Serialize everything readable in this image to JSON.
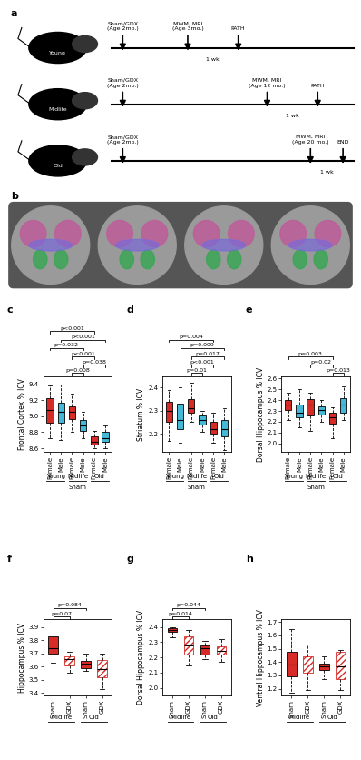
{
  "figure_a": {
    "label": "a",
    "rows": [
      {
        "name": "Young",
        "start": "Sham/GDX\n(Age 2mo.)",
        "test": "MWM, MRI\n(Age 3mo.)",
        "gap": "1 wk",
        "end": "PATH"
      },
      {
        "name": "Midlife",
        "start": "Sham/GDX\n(Age 2mo.)",
        "test": "MWM, MRI\n(Age 12 mo.)",
        "gap": "1 wk",
        "end": "PATH"
      },
      {
        "name": "Old",
        "start": "Sham/GDX\n(Age 2mo.)",
        "test": "MWM, MRI\n(Age 20 mo.)",
        "gap": "1 wk",
        "end": "END"
      }
    ]
  },
  "figure_b": {
    "label": "b"
  },
  "chart_data": [
    {
      "type": "box",
      "label": "c",
      "ylabel": "Frontal Cortex % ICV",
      "categories": [
        "Female",
        "Male",
        "Female",
        "Male",
        "Female",
        "Male"
      ],
      "groups": [
        "Young",
        "Young",
        "Midlife",
        "Midlife",
        "Old",
        "Old"
      ],
      "xlabel": "Sham",
      "colors": [
        "#d62b27",
        "#45b8d8",
        "#d62b27",
        "#45b8d8",
        "#d62b27",
        "#45b8d8"
      ],
      "box_stats": [
        {
          "min": 8.72,
          "q1": 8.92,
          "median": 9.08,
          "q3": 9.22,
          "max": 9.38
        },
        {
          "min": 8.7,
          "q1": 8.92,
          "median": 9.05,
          "q3": 9.17,
          "max": 9.4
        },
        {
          "min": 8.8,
          "q1": 8.96,
          "median": 9.05,
          "q3": 9.12,
          "max": 9.28
        },
        {
          "min": 8.73,
          "q1": 8.82,
          "median": 8.88,
          "q3": 8.95,
          "max": 9.05
        },
        {
          "min": 8.6,
          "q1": 8.64,
          "median": 8.68,
          "q3": 8.75,
          "max": 8.82
        },
        {
          "min": 8.6,
          "q1": 8.68,
          "median": 8.72,
          "q3": 8.8,
          "max": 8.88
        }
      ],
      "ylim": [
        8.55,
        9.5
      ],
      "yticks": [
        8.6,
        8.8,
        9.0,
        9.2,
        9.4
      ],
      "comparisons": [
        {
          "from": 2,
          "to": 3,
          "label": "p=0.008"
        },
        {
          "from": 3,
          "to": 5,
          "label": "p=0.038"
        },
        {
          "from": 2,
          "to": 4,
          "label": "p<0.001"
        },
        {
          "from": 0,
          "to": 3,
          "label": "p=0.032"
        },
        {
          "from": 1,
          "to": 5,
          "label": "p<0.001"
        },
        {
          "from": 0,
          "to": 4,
          "label": "p<0.001"
        }
      ]
    },
    {
      "type": "box",
      "label": "d",
      "ylabel": "Striatum % ICV",
      "categories": [
        "Female",
        "Male",
        "Female",
        "Male",
        "Female",
        "Male"
      ],
      "groups": [
        "Young",
        "Young",
        "Midlife",
        "Midlife",
        "Old",
        "Old"
      ],
      "xlabel": "Sham",
      "colors": [
        "#d62b27",
        "#45b8d8",
        "#d62b27",
        "#45b8d8",
        "#d62b27",
        "#45b8d8"
      ],
      "box_stats": [
        {
          "min": 2.17,
          "q1": 2.25,
          "median": 2.3,
          "q3": 2.34,
          "max": 2.39
        },
        {
          "min": 2.16,
          "q1": 2.22,
          "median": 2.26,
          "q3": 2.33,
          "max": 2.4
        },
        {
          "min": 2.25,
          "q1": 2.29,
          "median": 2.31,
          "q3": 2.35,
          "max": 2.42
        },
        {
          "min": 2.21,
          "q1": 2.24,
          "median": 2.26,
          "q3": 2.28,
          "max": 2.3
        },
        {
          "min": 2.16,
          "q1": 2.2,
          "median": 2.22,
          "q3": 2.25,
          "max": 2.29
        },
        {
          "min": 2.13,
          "q1": 2.19,
          "median": 2.22,
          "q3": 2.26,
          "max": 2.31
        }
      ],
      "ylim": [
        2.12,
        2.45
      ],
      "yticks": [
        2.2,
        2.3,
        2.4
      ],
      "comparisons": [
        {
          "from": 2,
          "to": 3,
          "label": "p=0.01"
        },
        {
          "from": 2,
          "to": 4,
          "label": "p<0.001"
        },
        {
          "from": 2,
          "to": 5,
          "label": "p=0.017"
        },
        {
          "from": 1,
          "to": 5,
          "label": "p=0.009"
        },
        {
          "from": 0,
          "to": 4,
          "label": "p=0.004"
        }
      ]
    },
    {
      "type": "box",
      "label": "e",
      "ylabel": "Dorsal Hippocampus % ICV",
      "categories": [
        "Female",
        "Male",
        "Female",
        "Male",
        "Female",
        "Male"
      ],
      "groups": [
        "Young",
        "Young",
        "Midlife",
        "Midlife",
        "Old",
        "Old"
      ],
      "xlabel": "Sham",
      "colors": [
        "#d62b27",
        "#45b8d8",
        "#d62b27",
        "#45b8d8",
        "#d62b27",
        "#45b8d8"
      ],
      "box_stats": [
        {
          "min": 2.22,
          "q1": 2.31,
          "median": 2.36,
          "q3": 2.4,
          "max": 2.47
        },
        {
          "min": 2.15,
          "q1": 2.24,
          "median": 2.28,
          "q3": 2.36,
          "max": 2.5
        },
        {
          "min": 2.12,
          "q1": 2.26,
          "median": 2.36,
          "q3": 2.41,
          "max": 2.47
        },
        {
          "min": 2.2,
          "q1": 2.27,
          "median": 2.31,
          "q3": 2.34,
          "max": 2.4
        },
        {
          "min": 2.05,
          "q1": 2.18,
          "median": 2.24,
          "q3": 2.28,
          "max": 2.33
        },
        {
          "min": 2.22,
          "q1": 2.28,
          "median": 2.36,
          "q3": 2.42,
          "max": 2.53
        }
      ],
      "ylim": [
        1.92,
        2.62
      ],
      "yticks": [
        2.0,
        2.1,
        2.2,
        2.3,
        2.4,
        2.5,
        2.6
      ],
      "comparisons": [
        {
          "from": 4,
          "to": 5,
          "label": "p=0.013"
        },
        {
          "from": 2,
          "to": 4,
          "label": "p=0.02"
        },
        {
          "from": 0,
          "to": 4,
          "label": "p=0.003"
        }
      ]
    },
    {
      "type": "box",
      "label": "f",
      "ylabel": "Hippocampus % ICV",
      "categories": [
        "Sham",
        "GDX",
        "Sham",
        "GDX"
      ],
      "groups": [
        "Midlife",
        "Midlife",
        "Old",
        "Old"
      ],
      "colors": [
        "#d62b27",
        "#d62b27",
        "#d62b27",
        "#d62b27"
      ],
      "line_styles": [
        "solid",
        "hatched",
        "solid",
        "hatched"
      ],
      "box_stats": [
        {
          "min": 3.63,
          "q1": 3.7,
          "median": 3.74,
          "q3": 3.83,
          "max": 3.92
        },
        {
          "min": 3.55,
          "q1": 3.61,
          "median": 3.66,
          "q3": 3.68,
          "max": 3.71
        },
        {
          "min": 3.57,
          "q1": 3.59,
          "median": 3.62,
          "q3": 3.64,
          "max": 3.7
        },
        {
          "min": 3.43,
          "q1": 3.52,
          "median": 3.58,
          "q3": 3.65,
          "max": 3.7
        }
      ],
      "ylim": [
        3.38,
        3.96
      ],
      "yticks": [
        3.4,
        3.5,
        3.6,
        3.7,
        3.8,
        3.9
      ],
      "comparisons": [
        {
          "from": 0,
          "to": 1,
          "label": "p=0.07"
        },
        {
          "from": 0,
          "to": 2,
          "label": "p=0.084"
        }
      ]
    },
    {
      "type": "box",
      "label": "g",
      "ylabel": "Dorsal Hippocampus % ICV",
      "categories": [
        "Sham",
        "GDX",
        "Sham",
        "GDX"
      ],
      "groups": [
        "Midlife",
        "Midlife",
        "Old",
        "Old"
      ],
      "colors": [
        "#d62b27",
        "#d62b27",
        "#d62b27",
        "#d62b27"
      ],
      "line_styles": [
        "solid",
        "hatched",
        "solid",
        "hatched"
      ],
      "box_stats": [
        {
          "min": 2.33,
          "q1": 2.37,
          "median": 2.38,
          "q3": 2.39,
          "max": 2.4
        },
        {
          "min": 2.15,
          "q1": 2.22,
          "median": 2.28,
          "q3": 2.34,
          "max": 2.38
        },
        {
          "min": 2.19,
          "q1": 2.22,
          "median": 2.26,
          "q3": 2.28,
          "max": 2.31
        },
        {
          "min": 2.17,
          "q1": 2.22,
          "median": 2.24,
          "q3": 2.27,
          "max": 2.32
        }
      ],
      "ylim": [
        1.95,
        2.45
      ],
      "yticks": [
        2.0,
        2.1,
        2.2,
        2.3,
        2.4
      ],
      "comparisons": [
        {
          "from": 0,
          "to": 1,
          "label": "p=0.014"
        },
        {
          "from": 0,
          "to": 2,
          "label": "p=0.044"
        }
      ]
    },
    {
      "type": "box",
      "label": "h",
      "ylabel": "Ventral Hippocampus % ICV",
      "categories": [
        "Sham",
        "GDX",
        "Sham",
        "GDX"
      ],
      "groups": [
        "Midlife",
        "Midlife",
        "Old",
        "Old"
      ],
      "colors": [
        "#d62b27",
        "#d62b27",
        "#d62b27",
        "#d62b27"
      ],
      "line_styles": [
        "solid",
        "hatched",
        "solid",
        "hatched"
      ],
      "box_stats": [
        {
          "min": 1.17,
          "q1": 1.29,
          "median": 1.38,
          "q3": 1.48,
          "max": 1.65
        },
        {
          "min": 1.19,
          "q1": 1.32,
          "median": 1.38,
          "q3": 1.44,
          "max": 1.53
        },
        {
          "min": 1.27,
          "q1": 1.34,
          "median": 1.37,
          "q3": 1.39,
          "max": 1.44
        },
        {
          "min": 1.19,
          "q1": 1.27,
          "median": 1.37,
          "q3": 1.48,
          "max": 1.49
        }
      ],
      "ylim": [
        1.15,
        1.72
      ],
      "yticks": [
        1.2,
        1.3,
        1.4,
        1.5,
        1.6,
        1.7
      ],
      "comparisons": []
    }
  ]
}
